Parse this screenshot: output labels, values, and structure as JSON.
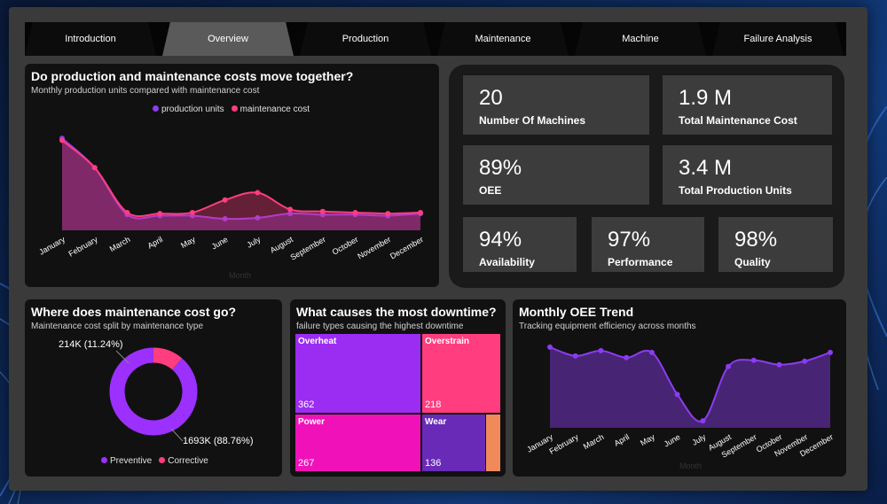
{
  "tabs": [
    {
      "label": "Introduction",
      "active": false
    },
    {
      "label": "Overview",
      "active": true
    },
    {
      "label": "Production",
      "active": false
    },
    {
      "label": "Maintenance",
      "active": false
    },
    {
      "label": "Machine",
      "active": false
    },
    {
      "label": "Failure Analysis",
      "active": false
    }
  ],
  "colors": {
    "production": "#8b3cf0",
    "maintenance": "#ff3d7f",
    "preventive": "#9b30ff",
    "corrective": "#ff3d7f",
    "overheat": "#9b2cf2",
    "overstrain": "#ff3d7f",
    "power": "#f012b8",
    "wear": "#6a2ab8",
    "other": "#f08a5a"
  },
  "cost_chart": {
    "title": "Do production and maintenance costs move together?",
    "subtitle": "Monthly production units compared with maintenance cost",
    "legend": [
      "production units",
      "maintenance cost"
    ],
    "x_axis_label": "Month"
  },
  "kpis": {
    "machines": {
      "value": "20",
      "label": "Number Of Machines"
    },
    "maint_cost": {
      "value": "1.9 M",
      "label": "Total Maintenance Cost"
    },
    "oee": {
      "value": "89%",
      "label": "OEE"
    },
    "prod_units": {
      "value": "3.4 M",
      "label": "Total Production Units"
    },
    "availability": {
      "value": "94%",
      "label": "Availability"
    },
    "performance": {
      "value": "97%",
      "label": "Performance"
    },
    "quality": {
      "value": "98%",
      "label": "Quality"
    }
  },
  "donut": {
    "title": "Where does maintenance cost go?",
    "subtitle": "Maintenance cost split by maintenance type",
    "corrective_label": "214K (11.24%)",
    "preventive_label": "1693K (88.76%)",
    "legend": [
      "Preventive",
      "Corrective"
    ]
  },
  "treemap": {
    "title": "What causes the most downtime?",
    "subtitle": "failure types causing the highest downtime",
    "items": [
      {
        "name": "Overheat",
        "value": "362"
      },
      {
        "name": "Overstrain",
        "value": "218"
      },
      {
        "name": "Power",
        "value": "267"
      },
      {
        "name": "Wear",
        "value": "136"
      }
    ]
  },
  "oee_trend": {
    "title": "Monthly OEE Trend",
    "subtitle": "Tracking equipment efficiency across months",
    "x_axis_label": "Month"
  },
  "chart_data": [
    {
      "type": "area",
      "title": "Do production and maintenance costs move together?",
      "categories": [
        "January",
        "February",
        "March",
        "April",
        "May",
        "June",
        "July",
        "August",
        "September",
        "October",
        "November",
        "December"
      ],
      "series": [
        {
          "name": "production units",
          "values": [
            0.88,
            0.6,
            0.15,
            0.14,
            0.14,
            0.11,
            0.12,
            0.16,
            0.15,
            0.15,
            0.14,
            0.16
          ]
        },
        {
          "name": "maintenance cost",
          "values": [
            0.86,
            0.6,
            0.17,
            0.16,
            0.17,
            0.29,
            0.36,
            0.2,
            0.18,
            0.17,
            0.16,
            0.17
          ]
        }
      ],
      "ylim": [
        0,
        1
      ]
    },
    {
      "type": "pie",
      "title": "Where does maintenance cost go?",
      "series": [
        {
          "name": "Preventive",
          "values": [
            88.76
          ]
        },
        {
          "name": "Corrective",
          "values": [
            11.24
          ]
        }
      ]
    },
    {
      "type": "heatmap",
      "title": "What causes the most downtime?",
      "categories": [
        "Overheat",
        "Overstrain",
        "Power",
        "Wear"
      ],
      "values": [
        362,
        218,
        267,
        136
      ]
    },
    {
      "type": "area",
      "title": "Monthly OEE Trend",
      "categories": [
        "January",
        "February",
        "March",
        "April",
        "May",
        "June",
        "July",
        "August",
        "September",
        "October",
        "November",
        "December"
      ],
      "values": [
        0.92,
        0.82,
        0.88,
        0.8,
        0.86,
        0.38,
        0.08,
        0.7,
        0.77,
        0.72,
        0.76,
        0.86
      ],
      "ylim": [
        0,
        1
      ]
    }
  ]
}
